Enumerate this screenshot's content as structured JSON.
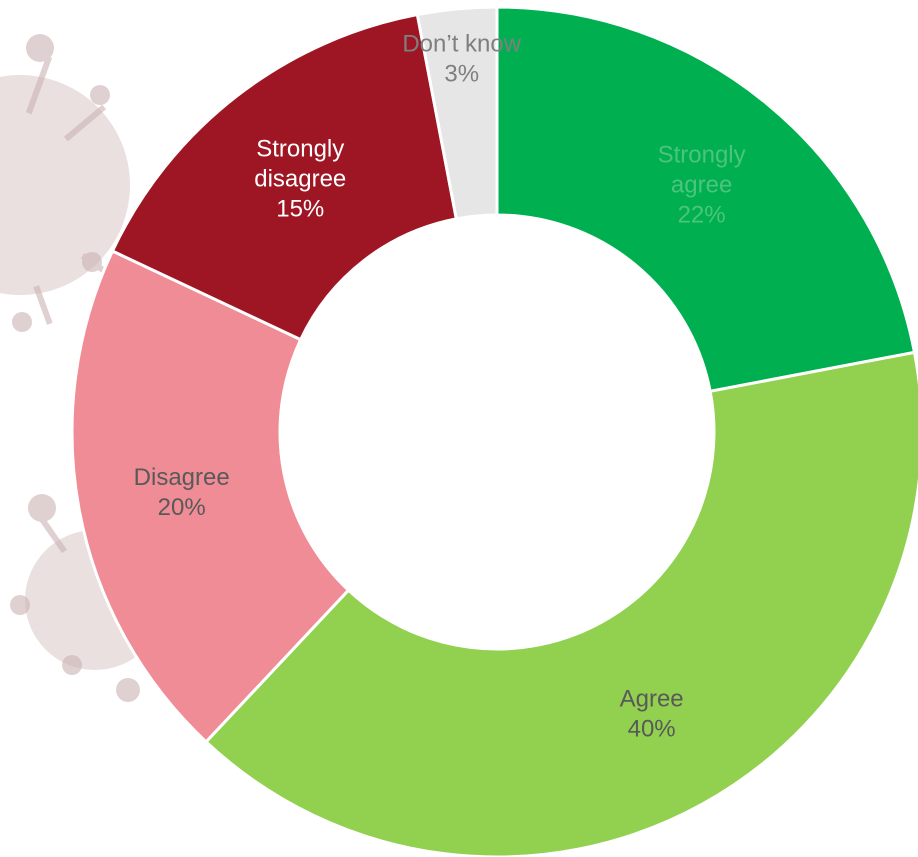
{
  "chart_data": {
    "type": "pie",
    "subtype": "donut",
    "title": "",
    "slices": [
      {
        "label_lines": [
          "Strongly",
          "agree"
        ],
        "value_label": "22%",
        "value": 22,
        "color": "#00b050",
        "label_color": "#4cc47b"
      },
      {
        "label_lines": [
          "Agree"
        ],
        "value_label": "40%",
        "value": 40,
        "color": "#92d050",
        "label_color": "#595959"
      },
      {
        "label_lines": [
          "Disagree"
        ],
        "value_label": "20%",
        "value": 20,
        "color": "#f08c96",
        "label_color": "#595959"
      },
      {
        "label_lines": [
          "Strongly",
          "disagree"
        ],
        "value_label": "15%",
        "value": 15,
        "color": "#9e1624",
        "label_color": "#ffffff"
      },
      {
        "label_lines": [
          "Don’t know"
        ],
        "value_label": "3%",
        "value": 3,
        "color": "#e6e6e6",
        "label_color": "#7f7f7f"
      }
    ],
    "legend": "none",
    "background_decoration": "virus-illustration"
  }
}
